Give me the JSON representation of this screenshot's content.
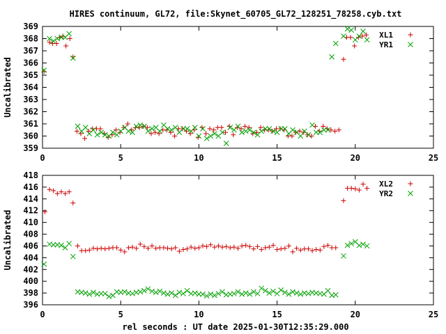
{
  "title": "HIRES continuum, GL72, file:Skynet_60705_GL72_128251_78258.cyb.txt",
  "colors": {
    "series_a": "#cc0000",
    "series_b": "#00a000",
    "axis": "#000000"
  },
  "chart_data": [
    {
      "type": "scatter",
      "ylabel": "Uncalibrated",
      "xlim": [
        0,
        25
      ],
      "ylim": [
        359,
        369
      ],
      "xticks": [
        0,
        5,
        10,
        15,
        20,
        25
      ],
      "yticks": [
        359,
        360,
        361,
        362,
        363,
        364,
        365,
        366,
        367,
        368,
        369
      ],
      "legend": "top-right",
      "series": [
        {
          "name": "XL1",
          "marker": "plus",
          "x": [
            0.1,
            0.45,
            0.65,
            0.9,
            1.1,
            1.3,
            1.5,
            1.75,
            1.95,
            2.2,
            2.45,
            2.7,
            2.95,
            3.2,
            3.45,
            3.7,
            3.95,
            4.2,
            4.45,
            4.7,
            4.95,
            5.2,
            5.45,
            5.7,
            5.95,
            6.2,
            6.45,
            6.7,
            6.95,
            7.2,
            7.45,
            7.7,
            7.95,
            8.2,
            8.45,
            8.7,
            8.95,
            9.2,
            9.45,
            9.7,
            9.95,
            10.2,
            10.45,
            10.7,
            10.95,
            11.2,
            11.45,
            11.7,
            11.95,
            12.2,
            12.45,
            12.7,
            12.95,
            13.2,
            13.45,
            13.7,
            13.95,
            14.2,
            14.45,
            14.7,
            14.95,
            15.2,
            15.45,
            15.7,
            15.95,
            16.2,
            16.45,
            16.7,
            16.95,
            17.2,
            17.45,
            17.7,
            17.95,
            18.2,
            18.45,
            18.7,
            18.95,
            19.25,
            19.45,
            19.7,
            19.95,
            20.2,
            20.45,
            20.7
          ],
          "y": [
            365.3,
            367.7,
            367.6,
            367.6,
            368.1,
            368.2,
            367.4,
            368.0,
            366.5,
            360.4,
            360.2,
            359.8,
            360.4,
            360.6,
            360.6,
            360.6,
            360.2,
            359.9,
            360.1,
            360.5,
            360.3,
            360.7,
            361.0,
            360.5,
            360.7,
            360.7,
            360.8,
            360.7,
            360.2,
            360.3,
            360.2,
            360.5,
            360.5,
            360.3,
            360.0,
            360.6,
            360.6,
            360.4,
            360.2,
            360.5,
            359.9,
            360.7,
            360.2,
            360.6,
            360.5,
            360.7,
            360.7,
            360.3,
            360.8,
            360.1,
            360.7,
            360.6,
            360.8,
            360.7,
            360.2,
            360.3,
            360.7,
            360.5,
            360.5,
            360.4,
            360.6,
            360.6,
            360.5,
            360.0,
            360.0,
            360.3,
            360.4,
            360.3,
            360.1,
            360.0,
            360.8,
            360.4,
            360.8,
            360.6,
            360.5,
            360.4,
            360.5,
            366.3,
            368.1,
            368.1,
            367.4,
            368.1,
            368.2,
            368.3
          ]
        },
        {
          "name": "YR1",
          "marker": "cross",
          "x": [
            0.1,
            0.45,
            0.7,
            0.95,
            1.2,
            1.45,
            1.7,
            1.95,
            2.25,
            2.5,
            2.75,
            3.0,
            3.25,
            3.5,
            3.75,
            4.0,
            4.25,
            4.5,
            4.75,
            5.0,
            5.25,
            5.5,
            5.75,
            6.0,
            6.25,
            6.5,
            6.75,
            7.0,
            7.25,
            7.5,
            7.75,
            8.0,
            8.25,
            8.5,
            8.75,
            9.0,
            9.25,
            9.5,
            9.75,
            10.0,
            10.25,
            10.5,
            10.75,
            11.0,
            11.25,
            11.5,
            11.75,
            12.0,
            12.25,
            12.5,
            12.75,
            13.0,
            13.25,
            13.5,
            13.75,
            14.0,
            14.25,
            14.5,
            14.75,
            15.0,
            15.25,
            15.5,
            15.75,
            16.0,
            16.25,
            16.5,
            16.75,
            17.0,
            17.25,
            17.5,
            17.75,
            18.0,
            18.25,
            18.5,
            18.75,
            19.25,
            19.5,
            19.75,
            20.0,
            20.25,
            20.5,
            20.75
          ],
          "y": [
            365.4,
            368.0,
            367.8,
            368.0,
            368.1,
            368.1,
            368.4,
            366.4,
            360.8,
            360.4,
            360.7,
            360.2,
            360.5,
            360.1,
            360.3,
            360.1,
            360.0,
            360.3,
            360.1,
            360.4,
            360.7,
            360.4,
            360.3,
            360.8,
            360.9,
            360.8,
            360.4,
            360.6,
            360.7,
            360.4,
            360.9,
            360.6,
            360.5,
            360.7,
            360.3,
            360.6,
            360.6,
            360.4,
            360.7,
            360.0,
            360.6,
            359.8,
            360.0,
            360.2,
            360.0,
            360.3,
            359.4,
            360.7,
            360.5,
            360.8,
            360.3,
            360.4,
            360.5,
            360.3,
            360.1,
            360.4,
            360.6,
            360.6,
            360.4,
            360.3,
            360.6,
            360.6,
            360.2,
            360.5,
            360.3,
            360.0,
            360.4,
            360.1,
            360.9,
            360.3,
            360.3,
            360.5,
            360.5,
            366.5,
            367.6,
            368.2,
            368.8,
            368.7,
            367.9,
            368.2,
            368.6,
            367.9
          ]
        }
      ]
    },
    {
      "type": "scatter",
      "ylabel": "Uncalibrated",
      "xlabel": "rel seconds : UT date 2025-01-30T12:35:29.000",
      "xlim": [
        0,
        25
      ],
      "ylim": [
        396,
        418
      ],
      "xticks": [
        0,
        5,
        10,
        15,
        20,
        25
      ],
      "yticks": [
        396,
        398,
        400,
        402,
        404,
        406,
        408,
        410,
        412,
        414,
        416,
        418
      ],
      "legend": "top-right",
      "series": [
        {
          "name": "XL2",
          "marker": "plus",
          "x": [
            0.15,
            0.45,
            0.7,
            0.95,
            1.2,
            1.45,
            1.7,
            1.95,
            2.25,
            2.5,
            2.75,
            3.0,
            3.25,
            3.5,
            3.75,
            4.0,
            4.25,
            4.5,
            4.75,
            5.0,
            5.25,
            5.5,
            5.75,
            6.0,
            6.25,
            6.5,
            6.75,
            7.0,
            7.25,
            7.5,
            7.75,
            8.0,
            8.25,
            8.5,
            8.75,
            9.0,
            9.25,
            9.5,
            9.75,
            10.0,
            10.25,
            10.5,
            10.75,
            11.0,
            11.25,
            11.5,
            11.75,
            12.0,
            12.25,
            12.5,
            12.75,
            13.0,
            13.25,
            13.5,
            13.75,
            14.0,
            14.25,
            14.5,
            14.75,
            15.0,
            15.25,
            15.5,
            15.75,
            16.0,
            16.25,
            16.5,
            16.75,
            17.0,
            17.25,
            17.5,
            17.75,
            18.0,
            18.25,
            18.5,
            18.75,
            19.25,
            19.5,
            19.75,
            20.0,
            20.25,
            20.5,
            20.75
          ],
          "y": [
            411.8,
            415.6,
            415.4,
            414.9,
            415.2,
            414.9,
            415.2,
            413.3,
            406.0,
            405.2,
            405.2,
            405.3,
            405.6,
            405.5,
            405.6,
            405.5,
            405.6,
            405.7,
            405.7,
            405.3,
            405.0,
            405.7,
            405.8,
            405.6,
            406.3,
            405.9,
            405.6,
            406.0,
            405.6,
            405.7,
            405.7,
            405.6,
            405.5,
            405.7,
            405.1,
            405.4,
            405.5,
            405.8,
            405.6,
            405.7,
            406.0,
            405.9,
            406.2,
            405.8,
            406.0,
            405.8,
            405.9,
            405.7,
            405.8,
            405.6,
            406.0,
            406.1,
            405.9,
            405.5,
            405.9,
            405.4,
            405.7,
            405.8,
            406.1,
            405.4,
            405.5,
            405.6,
            406.0,
            405.0,
            405.6,
            405.3,
            405.5,
            405.5,
            405.2,
            405.4,
            405.3,
            405.9,
            406.1,
            405.7,
            405.7,
            413.7,
            415.8,
            415.8,
            415.7,
            415.5,
            416.5,
            415.8
          ]
        },
        {
          "name": "YR2",
          "marker": "cross",
          "x": [
            0.1,
            0.45,
            0.7,
            0.95,
            1.2,
            1.45,
            1.7,
            1.95,
            2.25,
            2.5,
            2.75,
            3.0,
            3.25,
            3.5,
            3.75,
            4.0,
            4.25,
            4.5,
            4.75,
            5.0,
            5.25,
            5.5,
            5.75,
            6.0,
            6.25,
            6.5,
            6.75,
            7.0,
            7.25,
            7.5,
            7.75,
            8.0,
            8.25,
            8.5,
            8.75,
            9.0,
            9.25,
            9.5,
            9.75,
            10.0,
            10.25,
            10.5,
            10.75,
            11.0,
            11.25,
            11.5,
            11.75,
            12.0,
            12.25,
            12.5,
            12.75,
            13.0,
            13.25,
            13.5,
            13.75,
            14.0,
            14.25,
            14.5,
            14.75,
            15.0,
            15.25,
            15.5,
            15.75,
            16.0,
            16.25,
            16.5,
            16.75,
            17.0,
            17.25,
            17.5,
            17.75,
            18.0,
            18.25,
            18.5,
            18.75,
            19.25,
            19.5,
            19.75,
            20.0,
            20.25,
            20.5,
            20.75
          ],
          "y": [
            402.9,
            406.3,
            406.2,
            406.2,
            406.1,
            405.7,
            406.4,
            404.2,
            398.2,
            398.1,
            398.0,
            397.8,
            398.1,
            397.8,
            397.9,
            397.9,
            397.4,
            397.6,
            398.2,
            398.1,
            398.2,
            398.0,
            397.9,
            398.1,
            398.2,
            398.4,
            398.7,
            398.3,
            398.1,
            398.3,
            398.0,
            397.8,
            398.0,
            397.6,
            398.1,
            397.9,
            398.4,
            397.9,
            398.0,
            397.8,
            397.8,
            397.5,
            397.8,
            397.6,
            397.9,
            398.2,
            397.7,
            397.8,
            397.9,
            398.2,
            397.8,
            398.0,
            397.8,
            398.2,
            397.9,
            398.8,
            398.4,
            398.0,
            398.3,
            397.9,
            398.5,
            398.1,
            397.8,
            398.2,
            398.0,
            397.8,
            398.0,
            397.9,
            398.1,
            398.0,
            397.9,
            397.8,
            398.4,
            397.6,
            397.7,
            404.3,
            406.1,
            406.4,
            406.7,
            406.1,
            406.3,
            406.0
          ]
        }
      ]
    }
  ]
}
